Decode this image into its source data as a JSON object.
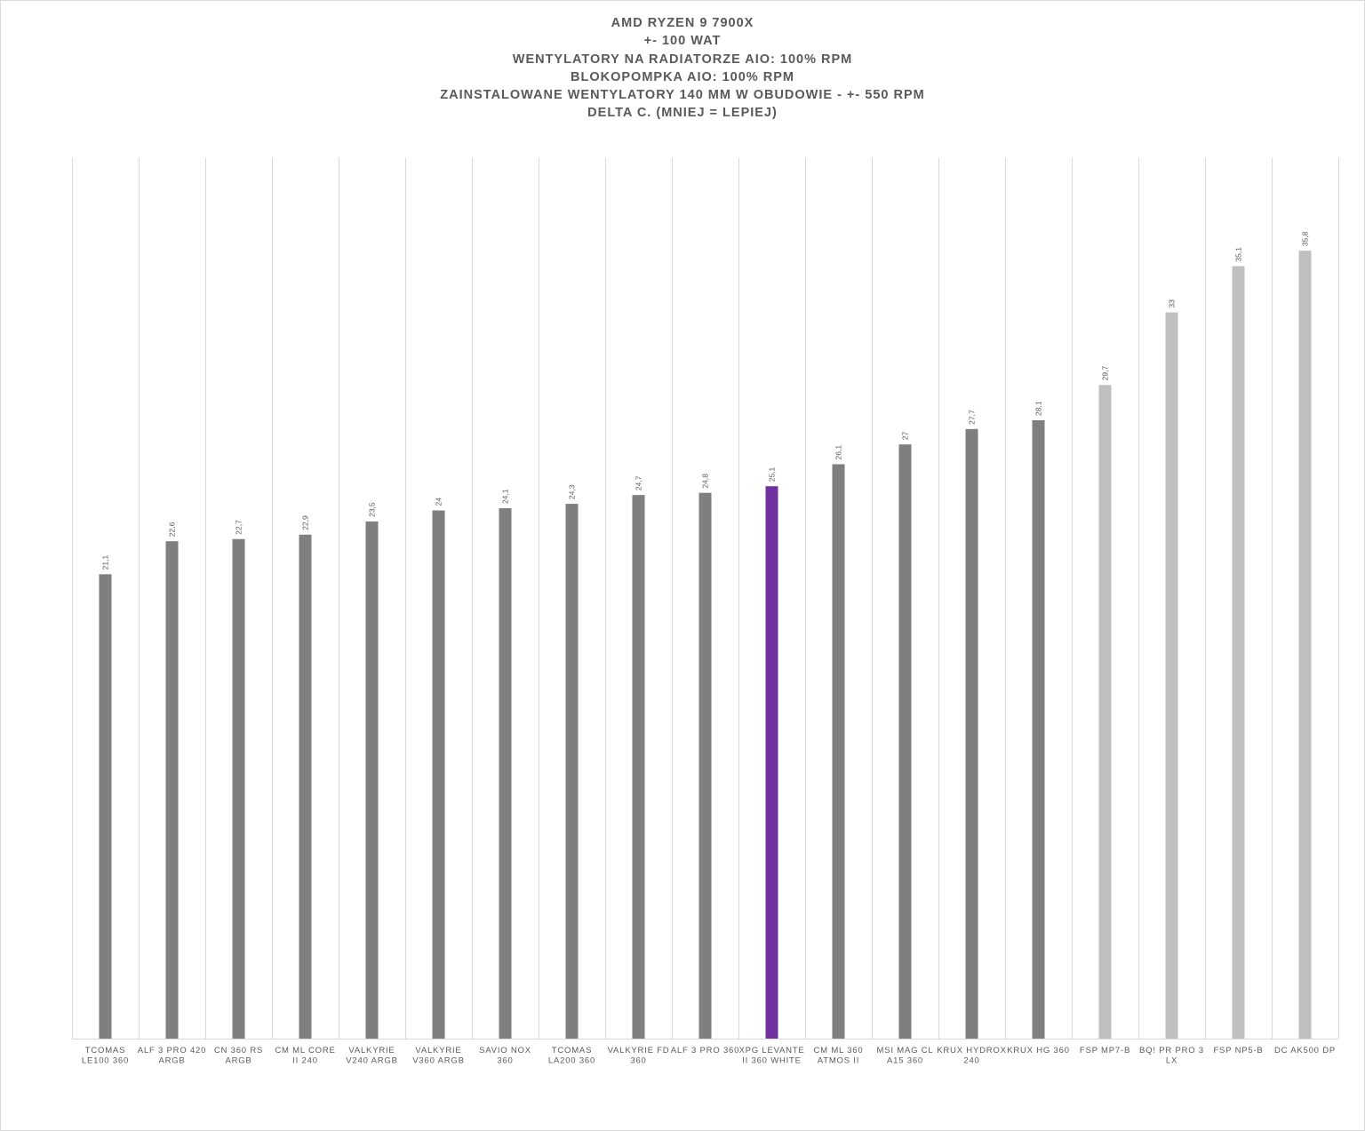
{
  "chart_data": {
    "type": "bar",
    "title_lines": [
      "AMD RYZEN 9 7900X",
      "+- 100 WAT",
      "WENTYLATORY NA RADIATORZE AIO: 100% RPM",
      "BLOKOPOMPKA AIO: 100% RPM",
      "ZAINSTALOWANE WENTYLATORY 140 MM W OBUDOWIE - +- 550 RPM",
      "DELTA C. (MNIEJ = LEPIEJ)"
    ],
    "categories": [
      [
        "TCOMAS",
        "LE100 360"
      ],
      [
        "ALF 3 PRO 420",
        "ARGB"
      ],
      [
        "CN 360 RS",
        "ARGB"
      ],
      [
        "CM ML CORE",
        "II 240"
      ],
      [
        "VALKYRIE",
        "V240 ARGB"
      ],
      [
        "VALKYRIE",
        "V360 ARGB"
      ],
      [
        "SAVIO NOX",
        "360"
      ],
      [
        "TCOMAS",
        "LA200 360"
      ],
      [
        "VALKYRIE FD",
        "360"
      ],
      [
        "ALF 3 PRO 360"
      ],
      [
        "XPG LEVANTE",
        "II 360 WHITE"
      ],
      [
        "CM ML 360",
        "ATMOS II"
      ],
      [
        "MSI MAG CL",
        "A15 360"
      ],
      [
        "KRUX HYDROX",
        "240"
      ],
      [
        "KRUX HG 360"
      ],
      [
        "FSP MP7-B"
      ],
      [
        "BQ! PR PRO 3",
        "LX"
      ],
      [
        "FSP NP5-B"
      ],
      [
        "DC AK500 DP"
      ]
    ],
    "values": [
      21.1,
      22.6,
      22.7,
      22.9,
      23.5,
      24,
      24.1,
      24.3,
      24.7,
      24.8,
      25.1,
      26.1,
      27,
      27.7,
      28.1,
      29.7,
      33,
      35.1,
      35.8
    ],
    "data_labels": [
      "21,1",
      "22,6",
      "22,7",
      "22,9",
      "23,5",
      "24",
      "24,1",
      "24,3",
      "24,7",
      "24,8",
      "25,1",
      "26,1",
      "27",
      "27,7",
      "28,1",
      "29,7",
      "33",
      "35,1",
      "35,8"
    ],
    "bar_colors": [
      "#7f7f7f",
      "#7f7f7f",
      "#7f7f7f",
      "#7f7f7f",
      "#7f7f7f",
      "#7f7f7f",
      "#7f7f7f",
      "#7f7f7f",
      "#7f7f7f",
      "#7f7f7f",
      "#7030a0",
      "#7f7f7f",
      "#7f7f7f",
      "#7f7f7f",
      "#7f7f7f",
      "#bfbfbf",
      "#bfbfbf",
      "#bfbfbf",
      "#bfbfbf"
    ],
    "ylim": [
      0,
      40
    ],
    "grid": "vertical category separators",
    "xlabel": "",
    "ylabel": ""
  }
}
